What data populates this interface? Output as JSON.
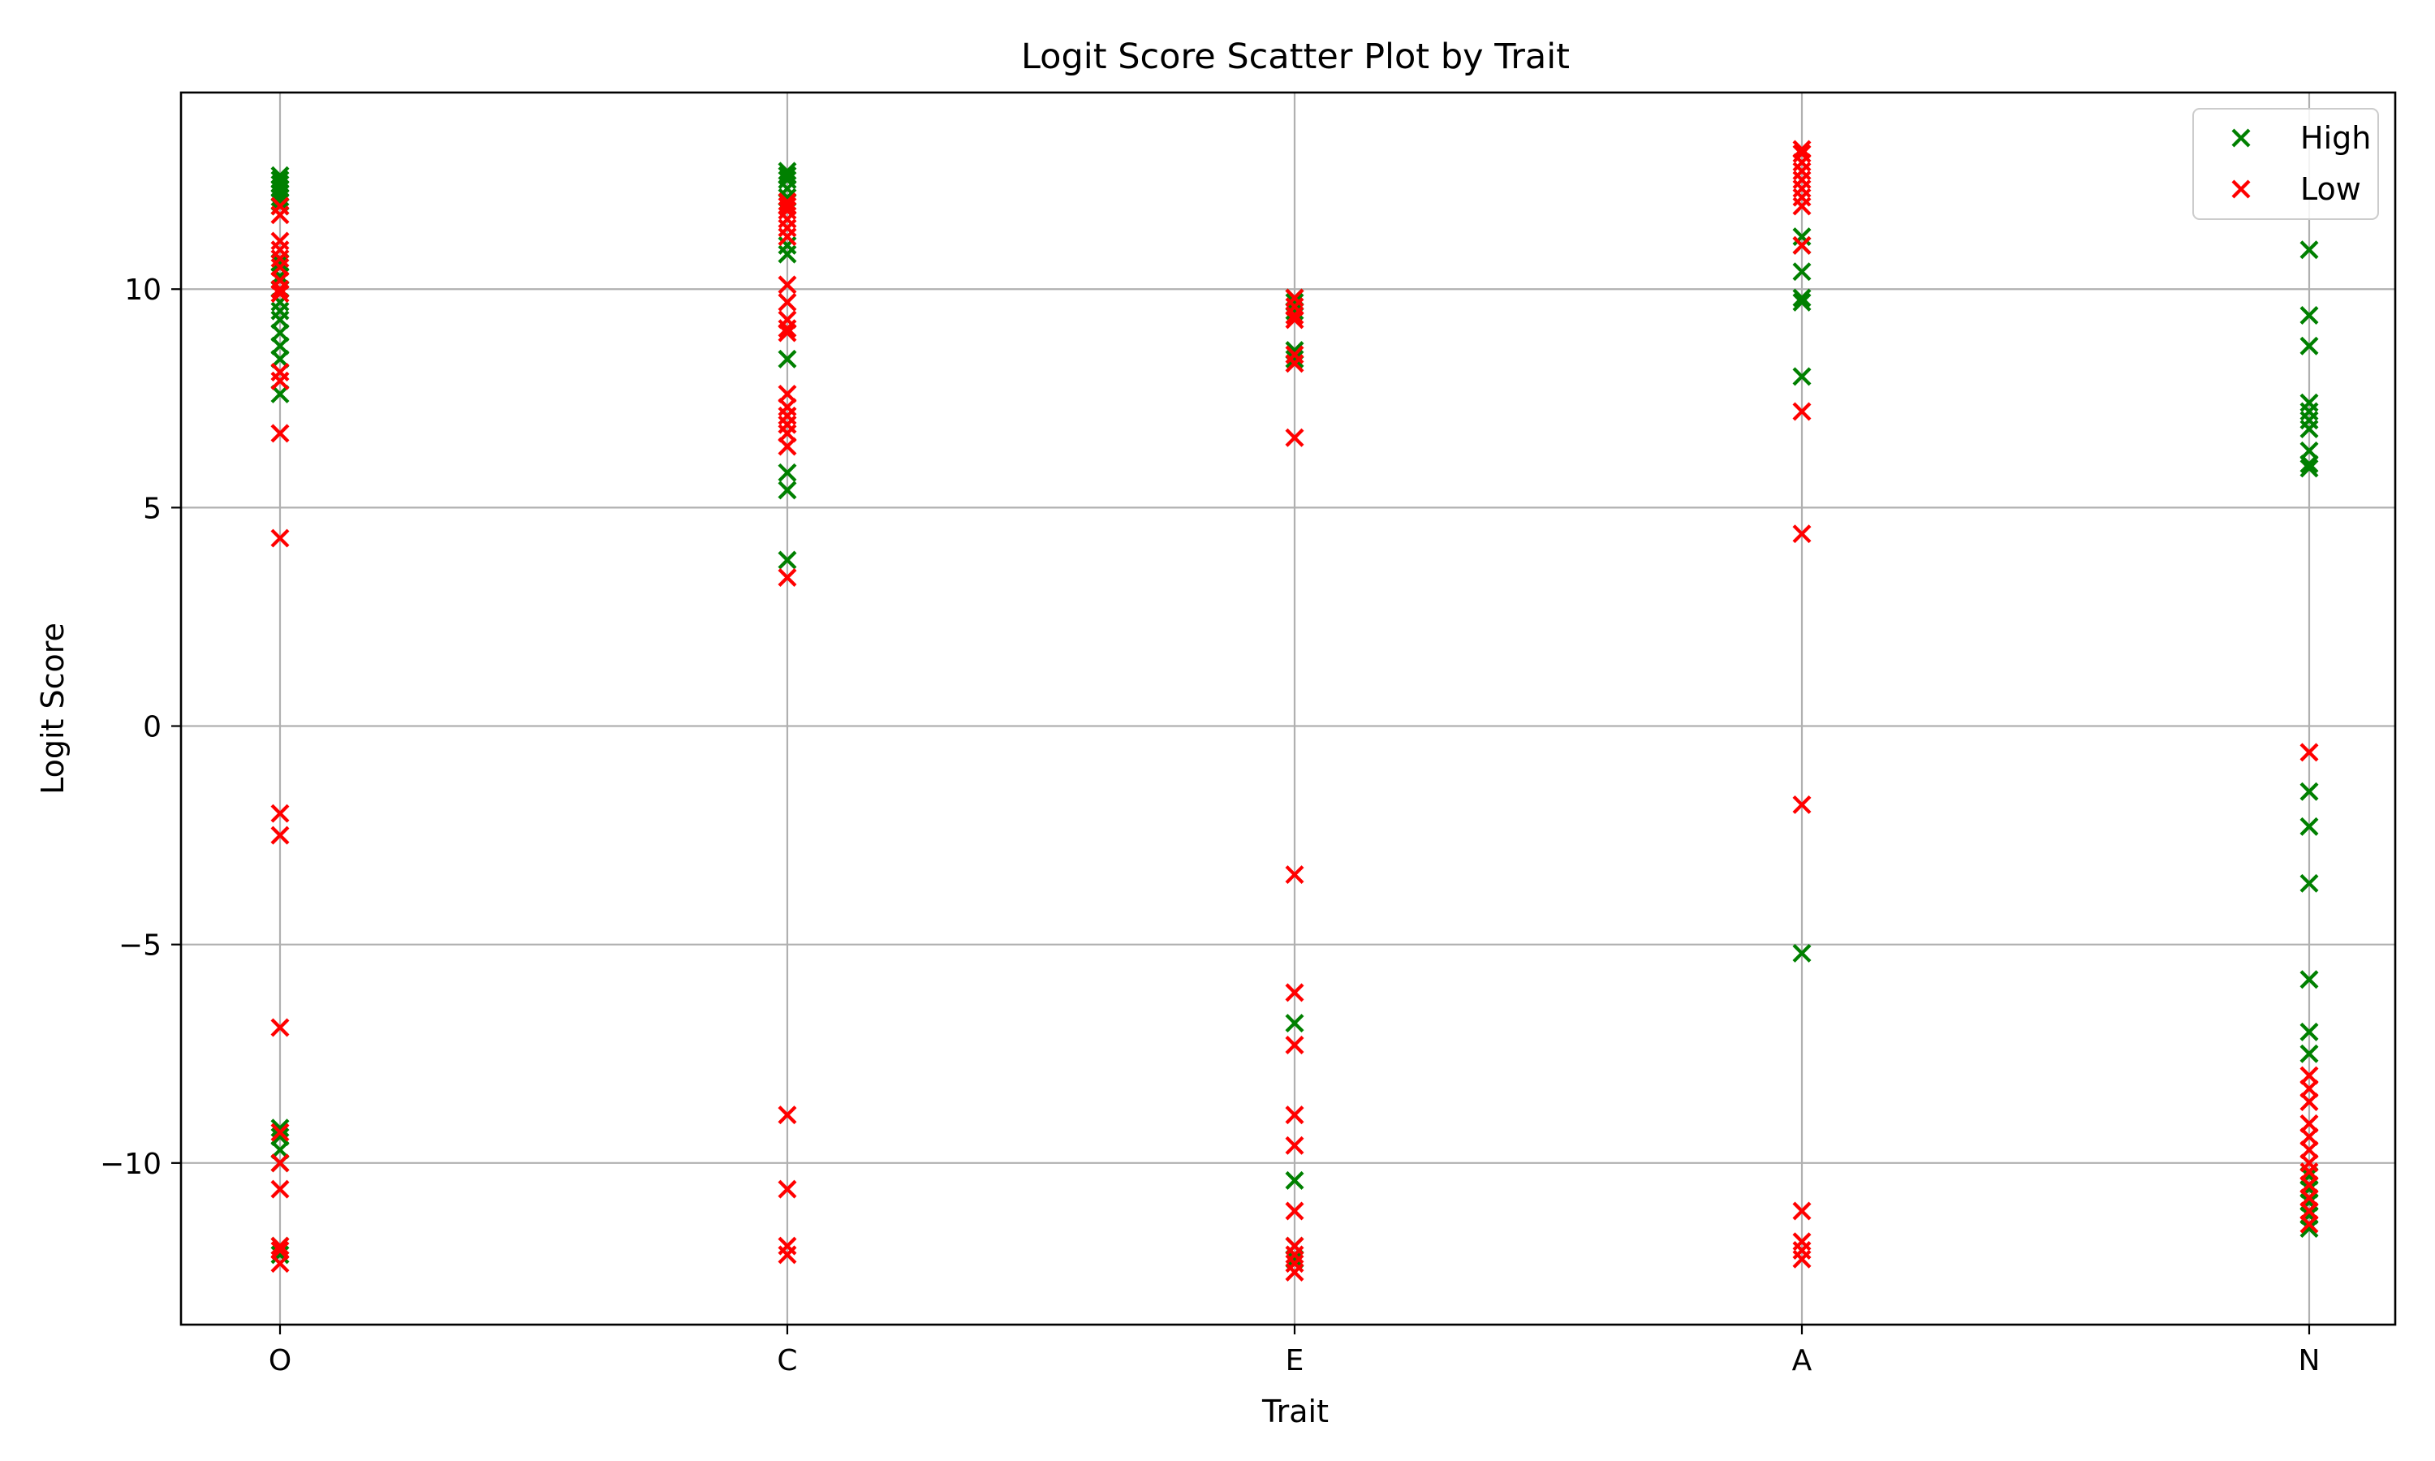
{
  "chart_data": {
    "type": "scatter",
    "title": "Logit Score Scatter Plot by Trait",
    "xlabel": "Trait",
    "ylabel": "Logit Score",
    "categories": [
      "O",
      "C",
      "E",
      "A",
      "N"
    ],
    "ylim": [
      -13.7,
      14.5
    ],
    "yticks": [
      {
        "value": -10,
        "label": "−10"
      },
      {
        "value": -5,
        "label": "−5"
      },
      {
        "value": 0,
        "label": "0"
      },
      {
        "value": 5,
        "label": "5"
      },
      {
        "value": 10,
        "label": "10"
      }
    ],
    "grid": true,
    "legend_position": "top-right",
    "marker": "x",
    "series": [
      {
        "name": "High",
        "color": "#008000",
        "points": [
          [
            "O",
            12.6
          ],
          [
            "O",
            12.5
          ],
          [
            "O",
            12.4
          ],
          [
            "O",
            12.3
          ],
          [
            "O",
            12.2
          ],
          [
            "O",
            12.1
          ],
          [
            "O",
            12.0
          ],
          [
            "O",
            11.9
          ],
          [
            "O",
            10.6
          ],
          [
            "O",
            10.3
          ],
          [
            "O",
            10.0
          ],
          [
            "O",
            9.7
          ],
          [
            "O",
            9.5
          ],
          [
            "O",
            9.3
          ],
          [
            "O",
            9.0
          ],
          [
            "O",
            8.7
          ],
          [
            "O",
            8.4
          ],
          [
            "O",
            7.6
          ],
          [
            "O",
            -9.2
          ],
          [
            "O",
            -9.4
          ],
          [
            "O",
            -9.7
          ],
          [
            "O",
            -10.0
          ],
          [
            "O",
            -11.9
          ],
          [
            "O",
            -12.1
          ],
          [
            "C",
            12.7
          ],
          [
            "C",
            12.6
          ],
          [
            "C",
            12.5
          ],
          [
            "C",
            12.3
          ],
          [
            "C",
            12.1
          ],
          [
            "C",
            11.0
          ],
          [
            "C",
            10.8
          ],
          [
            "C",
            8.4
          ],
          [
            "C",
            5.8
          ],
          [
            "C",
            5.4
          ],
          [
            "C",
            3.8
          ],
          [
            "E",
            9.8
          ],
          [
            "E",
            9.7
          ],
          [
            "E",
            9.5
          ],
          [
            "E",
            8.6
          ],
          [
            "E",
            8.4
          ],
          [
            "E",
            -6.8
          ],
          [
            "E",
            -10.4
          ],
          [
            "E",
            -11.9
          ],
          [
            "E",
            -12.2
          ],
          [
            "A",
            11.2
          ],
          [
            "A",
            11.0
          ],
          [
            "A",
            10.4
          ],
          [
            "A",
            9.8
          ],
          [
            "A",
            9.7
          ],
          [
            "A",
            8.0
          ],
          [
            "A",
            -5.2
          ],
          [
            "N",
            10.9
          ],
          [
            "N",
            9.4
          ],
          [
            "N",
            8.7
          ],
          [
            "N",
            7.4
          ],
          [
            "N",
            7.2
          ],
          [
            "N",
            7.0
          ],
          [
            "N",
            6.8
          ],
          [
            "N",
            6.3
          ],
          [
            "N",
            6.0
          ],
          [
            "N",
            5.9
          ],
          [
            "N",
            -1.5
          ],
          [
            "N",
            -2.3
          ],
          [
            "N",
            -3.6
          ],
          [
            "N",
            -5.8
          ],
          [
            "N",
            -7.0
          ],
          [
            "N",
            -7.5
          ],
          [
            "N",
            -10.3
          ],
          [
            "N",
            -10.6
          ],
          [
            "N",
            -10.9
          ],
          [
            "N",
            -11.2
          ],
          [
            "N",
            -11.5
          ]
        ]
      },
      {
        "name": "Low",
        "color": "#ff0000",
        "points": [
          [
            "O",
            11.9
          ],
          [
            "O",
            11.7
          ],
          [
            "O",
            11.1
          ],
          [
            "O",
            10.9
          ],
          [
            "O",
            10.7
          ],
          [
            "O",
            10.5
          ],
          [
            "O",
            10.2
          ],
          [
            "O",
            10.0
          ],
          [
            "O",
            9.9
          ],
          [
            "O",
            8.1
          ],
          [
            "O",
            7.9
          ],
          [
            "O",
            6.7
          ],
          [
            "O",
            4.3
          ],
          [
            "O",
            -2.0
          ],
          [
            "O",
            -2.5
          ],
          [
            "O",
            -6.9
          ],
          [
            "O",
            -9.3
          ],
          [
            "O",
            -10.0
          ],
          [
            "O",
            -10.6
          ],
          [
            "O",
            -11.9
          ],
          [
            "O",
            -12.0
          ],
          [
            "O",
            -12.3
          ],
          [
            "C",
            12.0
          ],
          [
            "C",
            11.9
          ],
          [
            "C",
            11.8
          ],
          [
            "C",
            11.6
          ],
          [
            "C",
            11.4
          ],
          [
            "C",
            11.2
          ],
          [
            "C",
            10.1
          ],
          [
            "C",
            9.7
          ],
          [
            "C",
            9.3
          ],
          [
            "C",
            9.1
          ],
          [
            "C",
            9.0
          ],
          [
            "C",
            7.6
          ],
          [
            "C",
            7.3
          ],
          [
            "C",
            7.1
          ],
          [
            "C",
            6.9
          ],
          [
            "C",
            6.7
          ],
          [
            "C",
            6.4
          ],
          [
            "C",
            3.4
          ],
          [
            "C",
            -8.9
          ],
          [
            "C",
            -10.6
          ],
          [
            "C",
            -11.9
          ],
          [
            "C",
            -12.1
          ],
          [
            "E",
            9.8
          ],
          [
            "E",
            9.6
          ],
          [
            "E",
            9.4
          ],
          [
            "E",
            9.3
          ],
          [
            "E",
            8.5
          ],
          [
            "E",
            8.3
          ],
          [
            "E",
            6.6
          ],
          [
            "E",
            -3.4
          ],
          [
            "E",
            -6.1
          ],
          [
            "E",
            -7.3
          ],
          [
            "E",
            -8.9
          ],
          [
            "E",
            -9.6
          ],
          [
            "E",
            -11.1
          ],
          [
            "E",
            -11.9
          ],
          [
            "E",
            -12.1
          ],
          [
            "E",
            -12.3
          ],
          [
            "E",
            -12.5
          ],
          [
            "A",
            13.2
          ],
          [
            "A",
            13.1
          ],
          [
            "A",
            12.9
          ],
          [
            "A",
            12.7
          ],
          [
            "A",
            12.5
          ],
          [
            "A",
            12.3
          ],
          [
            "A",
            12.1
          ],
          [
            "A",
            11.9
          ],
          [
            "A",
            11.0
          ],
          [
            "A",
            7.2
          ],
          [
            "A",
            4.4
          ],
          [
            "A",
            -1.8
          ],
          [
            "A",
            -11.1
          ],
          [
            "A",
            -11.8
          ],
          [
            "A",
            -12.0
          ],
          [
            "A",
            -12.2
          ],
          [
            "N",
            -0.6
          ],
          [
            "N",
            -8.0
          ],
          [
            "N",
            -8.3
          ],
          [
            "N",
            -8.6
          ],
          [
            "N",
            -9.1
          ],
          [
            "N",
            -9.4
          ],
          [
            "N",
            -9.7
          ],
          [
            "N",
            -10.0
          ],
          [
            "N",
            -10.2
          ],
          [
            "N",
            -10.5
          ],
          [
            "N",
            -10.8
          ],
          [
            "N",
            -11.1
          ],
          [
            "N",
            -11.4
          ]
        ]
      }
    ]
  }
}
